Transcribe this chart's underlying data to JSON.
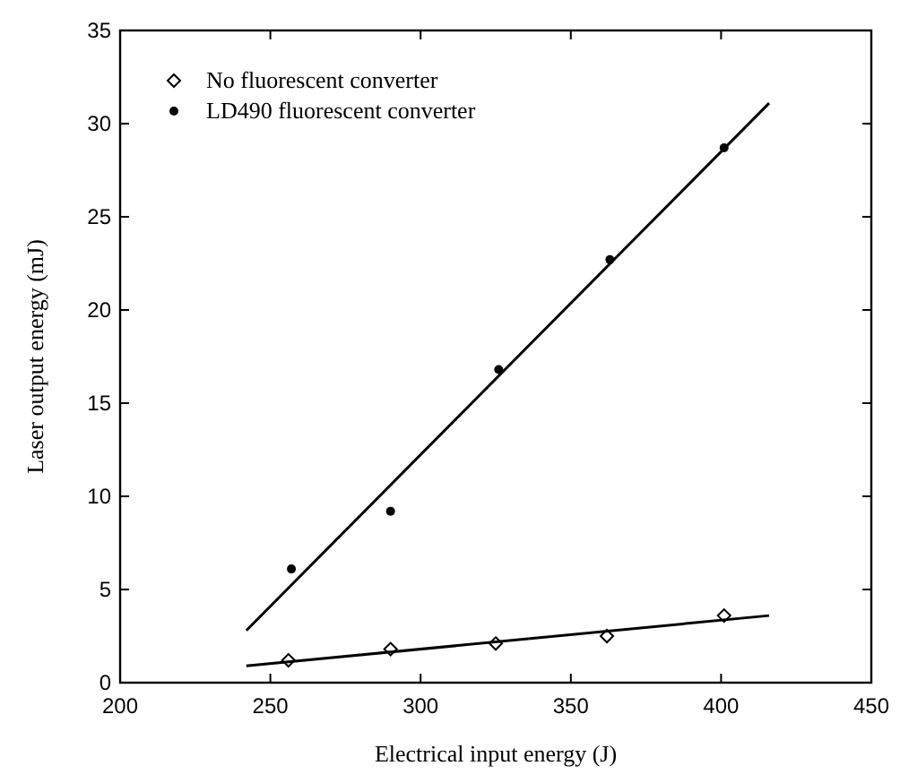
{
  "chart_data": {
    "type": "scatter",
    "xlabel": "Electrical input energy (J)",
    "ylabel": "Laser output energy (mJ)",
    "xlim": [
      200,
      450
    ],
    "xticks": [
      200,
      250,
      300,
      350,
      400,
      450
    ],
    "ylim": [
      0,
      35
    ],
    "yticks": [
      0,
      5,
      10,
      15,
      20,
      25,
      30,
      35
    ],
    "grid": false,
    "legend": "top left",
    "series": [
      {
        "name": "No fluorescent converter",
        "marker": "diamond",
        "color": "#000000",
        "x": [
          256,
          290,
          325,
          362,
          401
        ],
        "values": [
          1.2,
          1.8,
          2.1,
          2.5,
          3.6
        ]
      },
      {
        "name": "LD490 fluorescent converter",
        "marker": "circle",
        "color": "#000000",
        "x": [
          257,
          290,
          326,
          363,
          401
        ],
        "values": [
          6.1,
          9.2,
          16.8,
          22.7,
          28.7
        ]
      },
      {
        "type": "line",
        "marker": "none",
        "color": "#000000",
        "x": [
          242,
          416
        ],
        "values": [
          0.9,
          3.6
        ]
      },
      {
        "type": "line",
        "marker": "none",
        "color": "#000000",
        "x": [
          242,
          416
        ],
        "values": [
          2.8,
          31.1
        ]
      }
    ]
  }
}
